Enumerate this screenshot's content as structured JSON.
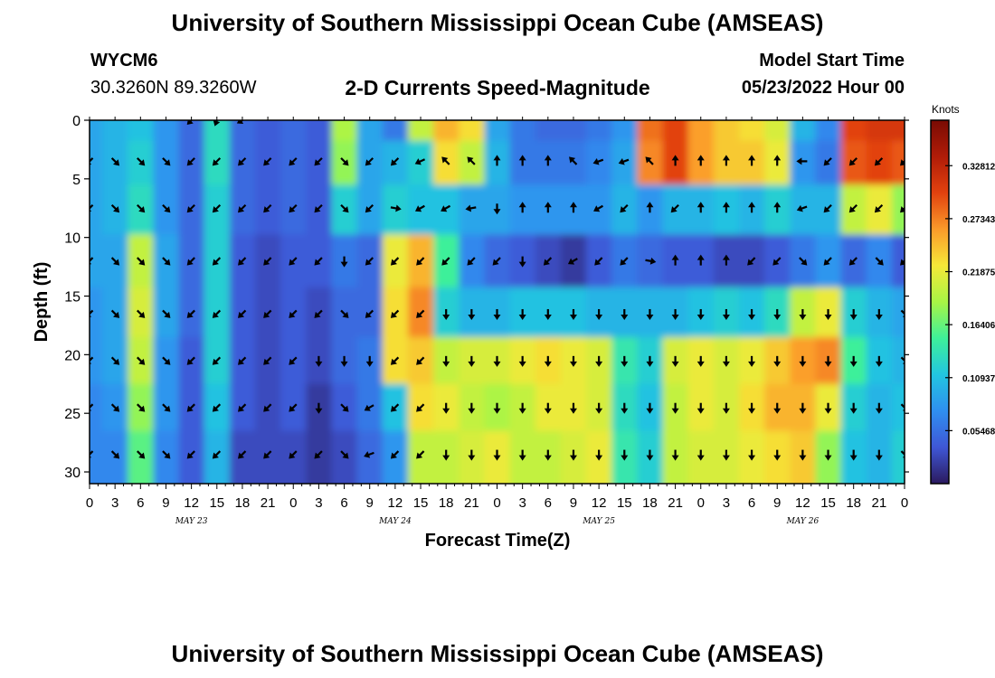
{
  "header": {
    "title": "University of Southern Mississippi Ocean Cube (AMSEAS)",
    "footer_title": "University of Southern Mississippi Ocean Cube (AMSEAS)",
    "station_id": "WYCM6",
    "station_coords": "30.3260N  89.3260W",
    "subtitle": "2-D Currents Speed-Magnitude",
    "model_start_label": "Model Start Time",
    "model_start_value": "05/23/2022 Hour 00"
  },
  "colors": {
    "background": "#ffffff",
    "arrow": "#000000",
    "colormap": [
      "#2b1a5e",
      "#3f57d6",
      "#2f8ff0",
      "#22c6e0",
      "#3ef09a",
      "#a8f545",
      "#f5e838",
      "#fb9a2a",
      "#e2420f",
      "#b01c08",
      "#7a0b04"
    ]
  },
  "chart_data": {
    "type": "heatmap",
    "title": "2-D Currents Speed-Magnitude",
    "xlabel": "Forecast Time(Z)",
    "ylabel": "Depth (ft)",
    "x_tick_labels": [
      "0",
      "3",
      "6",
      "9",
      "12",
      "15",
      "18",
      "21",
      "0",
      "3",
      "6",
      "9",
      "12",
      "15",
      "18",
      "21",
      "0",
      "3",
      "6",
      "9",
      "12",
      "15",
      "18",
      "21",
      "0",
      "3",
      "6",
      "9",
      "12",
      "15",
      "18",
      "21",
      "0"
    ],
    "date_labels": [
      {
        "label": "MAY 23",
        "hour": 12
      },
      {
        "label": "MAY 24",
        "hour": 36
      },
      {
        "label": "MAY 25",
        "hour": 60
      },
      {
        "label": "MAY 26",
        "hour": 84
      }
    ],
    "xlim_hours": [
      0,
      96
    ],
    "ylim_ft": [
      0,
      31
    ],
    "y_ticks": [
      0,
      5,
      10,
      15,
      20,
      25,
      30
    ],
    "colorbar": {
      "label": "Knots",
      "range": [
        0,
        0.375
      ],
      "ticks": [
        "0.05468",
        "0.10937",
        "0.16406",
        "0.21875",
        "0.27343",
        "0.32812"
      ],
      "tick_values": [
        0.05468,
        0.10937,
        0.16406,
        0.21875,
        0.27343,
        0.32812
      ]
    },
    "depth_levels_ft": [
      0,
      3.5,
      7.5,
      12,
      16.5,
      20.5,
      24.5,
      28.5
    ],
    "speed_grid_hours": [
      0,
      3,
      6,
      9,
      12,
      15,
      18,
      21,
      24,
      27,
      30,
      33,
      36,
      39,
      42,
      45,
      48,
      51,
      54,
      57,
      60,
      63,
      66,
      69,
      72,
      75,
      78,
      81,
      84,
      87,
      90,
      93,
      96
    ],
    "speed_knots": [
      [
        0.09,
        0.1,
        0.11,
        0.08,
        0.05,
        0.13,
        0.05,
        0.04,
        0.05,
        0.04,
        0.19,
        0.09,
        0.06,
        0.2,
        0.25,
        0.23,
        0.09,
        0.06,
        0.05,
        0.05,
        0.06,
        0.08,
        0.28,
        0.3,
        0.26,
        0.24,
        0.23,
        0.21,
        0.1,
        0.07,
        0.3,
        0.31,
        0.31
      ],
      [
        0.09,
        0.1,
        0.12,
        0.08,
        0.05,
        0.13,
        0.05,
        0.04,
        0.05,
        0.04,
        0.18,
        0.09,
        0.1,
        0.12,
        0.23,
        0.2,
        0.1,
        0.06,
        0.06,
        0.06,
        0.07,
        0.09,
        0.27,
        0.3,
        0.26,
        0.24,
        0.24,
        0.22,
        0.08,
        0.06,
        0.29,
        0.3,
        0.29
      ],
      [
        0.09,
        0.1,
        0.13,
        0.08,
        0.05,
        0.12,
        0.05,
        0.04,
        0.05,
        0.04,
        0.12,
        0.09,
        0.12,
        0.11,
        0.11,
        0.09,
        0.09,
        0.08,
        0.08,
        0.08,
        0.08,
        0.1,
        0.08,
        0.1,
        0.1,
        0.11,
        0.1,
        0.12,
        0.1,
        0.1,
        0.2,
        0.22,
        0.18
      ],
      [
        0.09,
        0.09,
        0.2,
        0.09,
        0.05,
        0.12,
        0.04,
        0.03,
        0.04,
        0.04,
        0.06,
        0.05,
        0.22,
        0.25,
        0.15,
        0.07,
        0.05,
        0.04,
        0.03,
        0.02,
        0.04,
        0.06,
        0.05,
        0.04,
        0.04,
        0.03,
        0.03,
        0.04,
        0.06,
        0.08,
        0.05,
        0.07,
        0.04
      ],
      [
        0.08,
        0.09,
        0.21,
        0.09,
        0.05,
        0.12,
        0.04,
        0.03,
        0.04,
        0.03,
        0.05,
        0.05,
        0.23,
        0.27,
        0.12,
        0.1,
        0.1,
        0.11,
        0.11,
        0.11,
        0.1,
        0.1,
        0.1,
        0.1,
        0.11,
        0.12,
        0.11,
        0.13,
        0.2,
        0.22,
        0.12,
        0.1,
        0.09
      ],
      [
        0.08,
        0.09,
        0.2,
        0.08,
        0.04,
        0.12,
        0.04,
        0.03,
        0.04,
        0.03,
        0.05,
        0.06,
        0.23,
        0.24,
        0.2,
        0.21,
        0.21,
        0.22,
        0.23,
        0.22,
        0.21,
        0.14,
        0.12,
        0.21,
        0.22,
        0.21,
        0.22,
        0.24,
        0.26,
        0.27,
        0.15,
        0.11,
        0.1
      ],
      [
        0.07,
        0.08,
        0.18,
        0.08,
        0.04,
        0.11,
        0.04,
        0.03,
        0.04,
        0.02,
        0.04,
        0.06,
        0.11,
        0.23,
        0.22,
        0.2,
        0.19,
        0.2,
        0.22,
        0.22,
        0.21,
        0.13,
        0.11,
        0.2,
        0.22,
        0.21,
        0.23,
        0.25,
        0.25,
        0.22,
        0.12,
        0.1,
        0.11
      ],
      [
        0.07,
        0.07,
        0.16,
        0.07,
        0.04,
        0.1,
        0.03,
        0.03,
        0.03,
        0.02,
        0.03,
        0.05,
        0.08,
        0.2,
        0.2,
        0.21,
        0.22,
        0.2,
        0.2,
        0.21,
        0.22,
        0.14,
        0.12,
        0.2,
        0.21,
        0.21,
        0.22,
        0.23,
        0.24,
        0.18,
        0.11,
        0.1,
        0.12
      ]
    ],
    "arrow_angles_deg": [
      [
        null,
        null,
        null,
        null,
        -135,
        -110,
        -150,
        null,
        null,
        null,
        null,
        null,
        null,
        null,
        null,
        null,
        null,
        null,
        null,
        null,
        null,
        null,
        null,
        null,
        null,
        null,
        null,
        null,
        null,
        null,
        null,
        null,
        null
      ],
      [
        -135,
        -45,
        -45,
        -45,
        -135,
        -135,
        -135,
        -135,
        -135,
        -135,
        -45,
        -135,
        -135,
        -155,
        135,
        135,
        90,
        90,
        90,
        135,
        -160,
        -160,
        135,
        90,
        90,
        90,
        90,
        90,
        180,
        -135,
        -135,
        -135,
        -135
      ],
      [
        -135,
        -45,
        -45,
        -45,
        -135,
        -135,
        -135,
        -135,
        -135,
        -135,
        -45,
        -135,
        -10,
        -150,
        -150,
        -170,
        -90,
        90,
        90,
        90,
        -150,
        -135,
        90,
        -135,
        90,
        90,
        90,
        90,
        -160,
        -135,
        -135,
        -135,
        -135
      ],
      [
        -135,
        -45,
        -45,
        -45,
        -135,
        -135,
        -135,
        -135,
        -135,
        -135,
        -90,
        -135,
        -135,
        -135,
        -135,
        -135,
        -135,
        -90,
        -135,
        -150,
        -135,
        -135,
        -10,
        90,
        90,
        90,
        -135,
        -135,
        -45,
        -135,
        -135,
        -45,
        -135
      ],
      [
        -135,
        -45,
        -45,
        -45,
        -135,
        -135,
        -135,
        -135,
        -135,
        -135,
        -45,
        -135,
        -135,
        -135,
        -90,
        -90,
        -90,
        -90,
        -90,
        -90,
        -90,
        -90,
        -90,
        -90,
        -90,
        -90,
        -90,
        -90,
        -90,
        -90,
        -90,
        -90,
        -45
      ],
      [
        -135,
        -45,
        -45,
        -45,
        -135,
        -135,
        -135,
        -135,
        -135,
        -90,
        -90,
        -90,
        -135,
        -135,
        -90,
        -90,
        -90,
        -90,
        -90,
        -90,
        -90,
        -90,
        -90,
        -90,
        -90,
        -90,
        -90,
        -90,
        -90,
        -90,
        -90,
        -90,
        -45
      ],
      [
        -135,
        -45,
        -45,
        -45,
        -135,
        -135,
        -135,
        -135,
        -135,
        -90,
        -45,
        -150,
        -135,
        -135,
        -90,
        -90,
        -90,
        -90,
        -90,
        -90,
        -90,
        -90,
        -90,
        -90,
        -90,
        -90,
        -90,
        -90,
        -90,
        -90,
        -90,
        -90,
        -45
      ],
      [
        -135,
        -45,
        -45,
        -45,
        -135,
        -135,
        -135,
        -135,
        -135,
        -135,
        -45,
        -160,
        -135,
        -135,
        -90,
        -90,
        -90,
        -90,
        -90,
        -90,
        -90,
        -90,
        -90,
        -90,
        -90,
        -90,
        -90,
        -90,
        -90,
        -90,
        -90,
        -90,
        -45
      ]
    ]
  }
}
